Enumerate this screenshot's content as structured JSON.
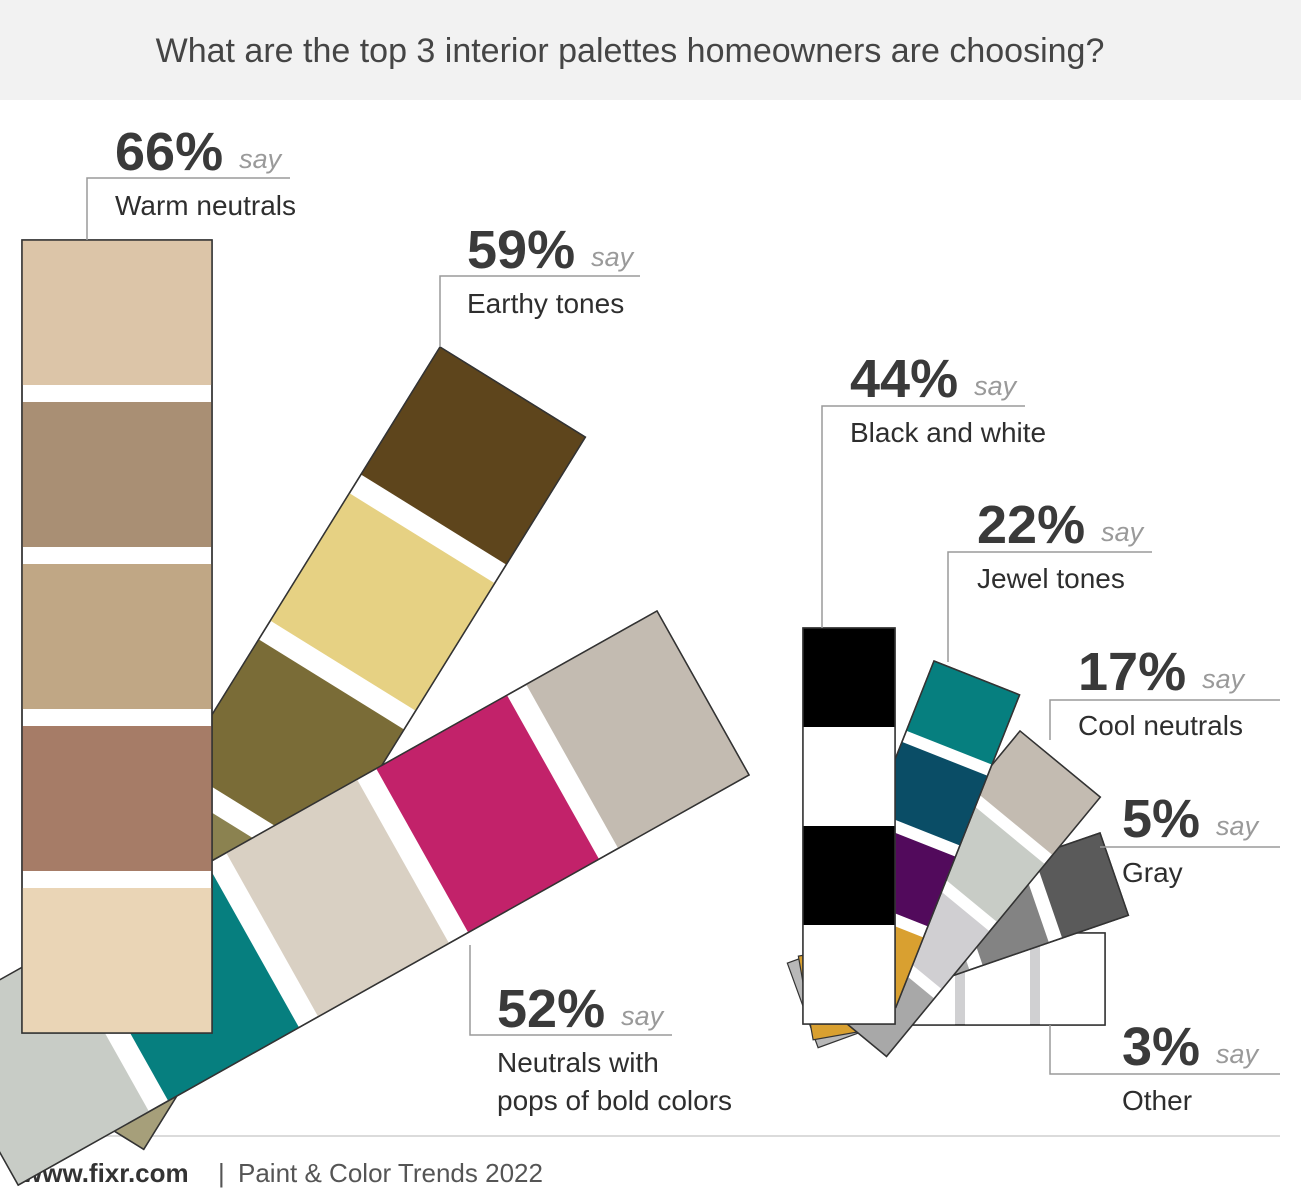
{
  "chart_data": {
    "type": "swatch-fan",
    "title": "What are the top 3 interior palettes homeowners are choosing?",
    "categories": [
      "Warm neutrals",
      "Earthy tones",
      "Neutrals with\npops of bold colors",
      "Black and white",
      "Jewel tones",
      "Cool neutrals",
      "Gray",
      "Other"
    ],
    "values": [
      66,
      59,
      52,
      44,
      22,
      17,
      5,
      3
    ],
    "value_labels": [
      "66%",
      "59%",
      "52%",
      "44%",
      "22%",
      "17%",
      "5%",
      "3%"
    ],
    "label_suffix": "say",
    "swatches": [
      [
        "#dcc5a8",
        "#a98f74",
        "#c0a785",
        "#a67c67",
        "#ead5b6"
      ],
      [
        "#5e451c",
        "#e6d183",
        "#7a6c37",
        "#8b8250",
        "#a69f7a"
      ],
      [
        "#c3bbb1",
        "#c2226a",
        "#d9d0c3",
        "#067f7f",
        "#c8ccc6"
      ],
      [
        "#000000",
        "#ffffff",
        "#000000",
        "#ffffff"
      ],
      [
        "#067f7f",
        "#0a4d66",
        "#520a5c",
        "#d9a030"
      ],
      [
        "#c3bbb1",
        "#c8ccc6",
        "#d0cfd2",
        "#a8a8a8"
      ],
      [
        "#5a5a5a",
        "#838383",
        "#a9a9a9"
      ],
      [
        "#ffffff",
        "#ffffff",
        "#ffffff"
      ]
    ]
  },
  "footer": {
    "site": "www.fixr.com",
    "separator": "|",
    "source": "Paint & Color Trends 2022"
  }
}
